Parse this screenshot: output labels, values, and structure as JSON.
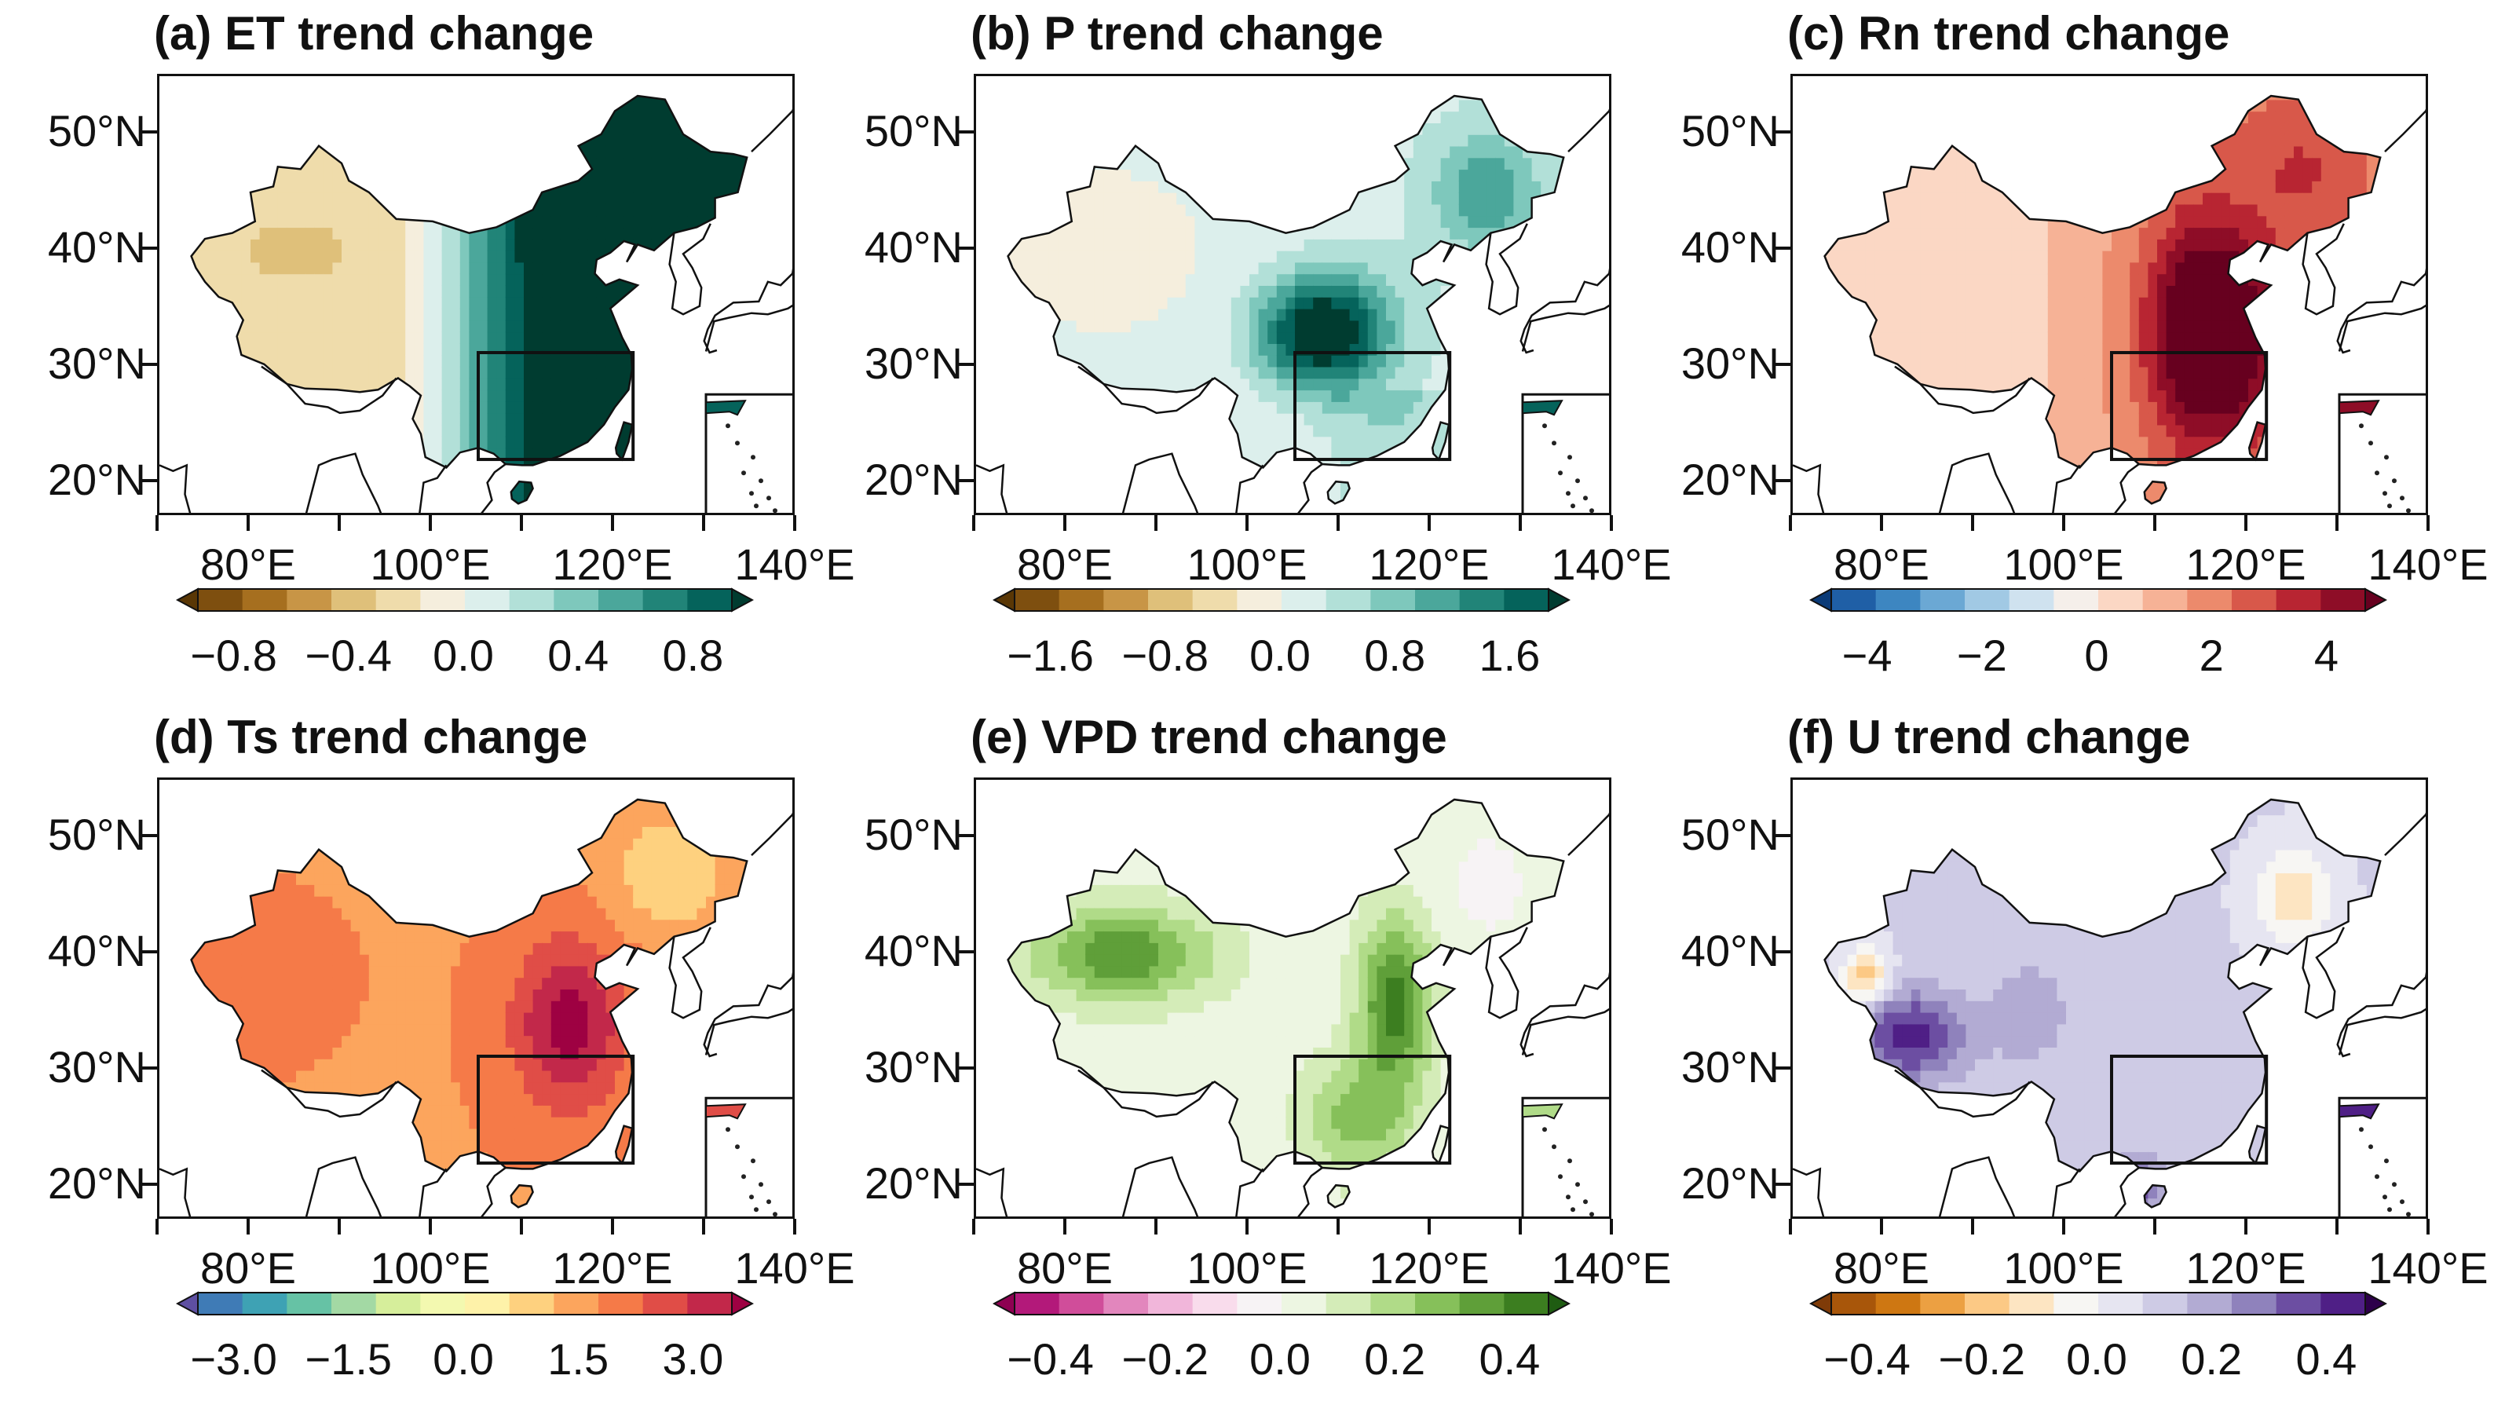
{
  "panels": [
    {
      "title": "(a) ET trend change",
      "colors": [
        "#5a3705",
        "#7e4f0f",
        "#a66f1f",
        "#c89546",
        "#dfc07a",
        "#efdcab",
        "#f5eedd",
        "#dcefec",
        "#b2e0d8",
        "#7ec8bc",
        "#4ba79b",
        "#218478",
        "#05635b",
        "#003c30"
      ],
      "ticks": [
        "−0.8",
        "−0.4",
        "0.0",
        "0.4",
        "0.8"
      ],
      "field": "et",
      "extends": [
        "both"
      ]
    },
    {
      "title": "(b) P trend change",
      "colors": [
        "#5a3705",
        "#7e4f0f",
        "#a66f1f",
        "#c89546",
        "#dfc07a",
        "#efdcab",
        "#f5eedd",
        "#dcefec",
        "#b2e0d8",
        "#7ec8bc",
        "#4ba79b",
        "#218478",
        "#05635b",
        "#003c30"
      ],
      "ticks": [
        "−1.6",
        "−0.8",
        "0.0",
        "0.8",
        "1.6"
      ],
      "field": "p",
      "extends": [
        "both"
      ]
    },
    {
      "title": "(c) Rn trend change",
      "colors": [
        "#0a3a77",
        "#1f5fa6",
        "#3d86c1",
        "#6ba8d4",
        "#a1c9e4",
        "#cfe2ef",
        "#f5efea",
        "#fbd7c4",
        "#f6b296",
        "#ec8a6c",
        "#d8584a",
        "#b82532",
        "#8e0d27",
        "#67001f"
      ],
      "ticks": [
        "−4",
        "−2",
        "0",
        "2",
        "4"
      ],
      "field": "rn",
      "extends": [
        "both"
      ]
    },
    {
      "title": "(d) Ts trend change",
      "colors": [
        "#5e4fa2",
        "#3f7bb6",
        "#3ea2b4",
        "#66c2a5",
        "#a3d9a4",
        "#d6ee9b",
        "#f3f9b0",
        "#fef2a9",
        "#fed17f",
        "#fca55d",
        "#f57a48",
        "#e04d47",
        "#c2284a",
        "#9e0142"
      ],
      "ticks": [
        "−3.0",
        "−1.5",
        "0.0",
        "1.5",
        "3.0"
      ],
      "field": "ts",
      "extends": [
        "both"
      ]
    },
    {
      "title": "(e) VPD trend change",
      "colors": [
        "#8e0152",
        "#b3197a",
        "#d04d9a",
        "#e286bd",
        "#f1b6da",
        "#f9dcec",
        "#f7f3f5",
        "#edf6e2",
        "#d4ecb8",
        "#b0db88",
        "#86c05a",
        "#5f9f39",
        "#3c7e20",
        "#1f5c12"
      ],
      "ticks": [
        "−0.4",
        "−0.2",
        "0.0",
        "0.2",
        "0.4"
      ],
      "field": "vpd",
      "extends": [
        "both"
      ]
    },
    {
      "title": "(f) U trend change",
      "colors": [
        "#7f3b08",
        "#a8560a",
        "#ce7712",
        "#eca042",
        "#fcc985",
        "#fde5c2",
        "#f7f6f3",
        "#e6e5f1",
        "#cecbe5",
        "#b2abd3",
        "#8f82bc",
        "#6c4ea2",
        "#4f1f86",
        "#2d004b"
      ],
      "ticks": [
        "−0.4",
        "−0.2",
        "0.0",
        "0.2",
        "0.4"
      ],
      "field": "u",
      "extends": [
        "both"
      ]
    }
  ],
  "axes": {
    "lat_labels": [
      "50°N",
      "40°N",
      "30°N",
      "20°N"
    ],
    "lon_labels": [
      "80°E",
      "100°E",
      "120°E",
      "140°E"
    ],
    "lon_range": [
      70,
      140
    ],
    "lat_range": [
      17,
      55
    ],
    "lat_ticks": [
      50,
      40,
      30,
      20
    ],
    "lon_ticks": [
      80,
      100,
      120,
      140
    ]
  }
}
